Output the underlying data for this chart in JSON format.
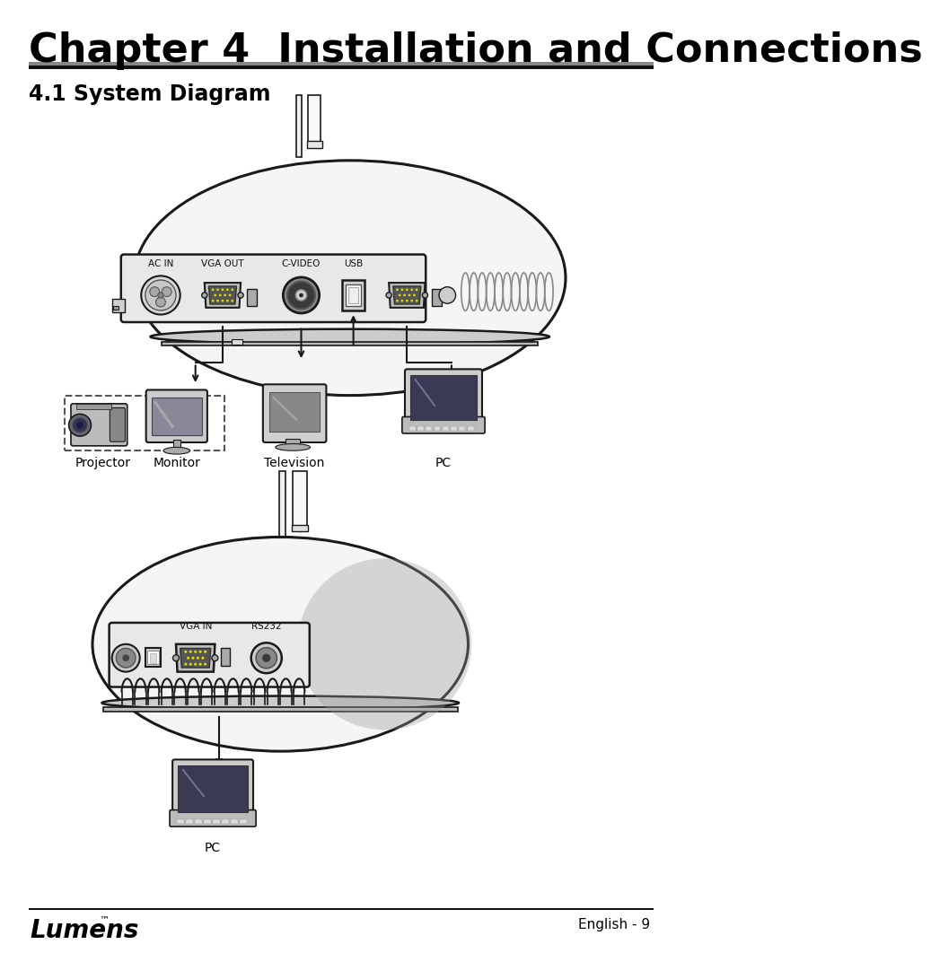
{
  "title": "Chapter 4  Installation and Connections",
  "section": "4.1 System Diagram",
  "footer_left": "Lumens",
  "footer_tm": "™",
  "footer_right": "English - 9",
  "bg_color": "#ffffff",
  "title_color": "#000000",
  "title_fontsize": 32,
  "section_fontsize": 17,
  "label_projector": "Projector",
  "label_monitor": "Monitor",
  "label_television": "Television",
  "label_pc": "PC",
  "label_pc2": "PC",
  "label_ac_in": "AC IN",
  "label_vga_out": "VGA OUT",
  "label_c_video": "C-VIDEO",
  "label_usb": "USB",
  "label_vga_in": "VGA IN",
  "label_rs232": "RS232",
  "line_color": "#1a1a1a",
  "device_fill": "#f5f5f5",
  "device_edge": "#1a1a1a",
  "port_fill": "#e0e0e0",
  "port_edge": "#333333"
}
